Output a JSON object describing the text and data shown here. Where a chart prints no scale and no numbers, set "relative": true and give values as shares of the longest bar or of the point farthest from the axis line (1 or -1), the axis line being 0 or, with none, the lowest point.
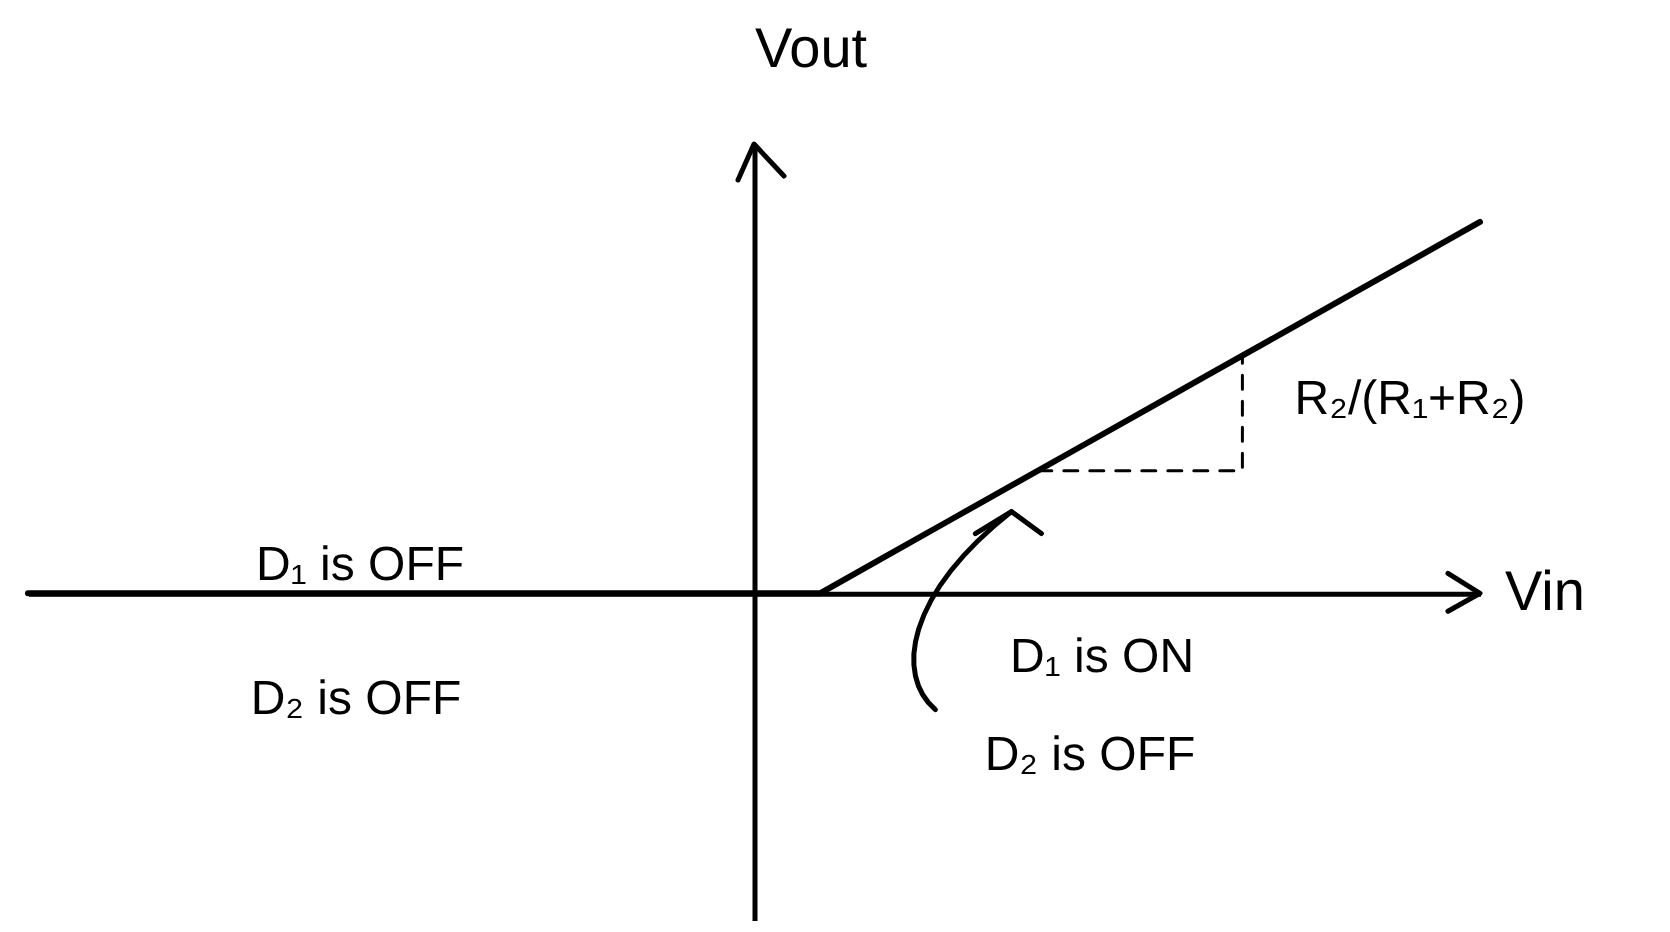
{
  "chart_data": {
    "type": "line",
    "xlabel": "Vin",
    "ylabel": "Vout",
    "categories": [
      null,
      null,
      null,
      null,
      null,
      null,
      null,
      null,
      null,
      null,
      null,
      null,
      null,
      null,
      null,
      null,
      null,
      null,
      null,
      null,
      null,
      null,
      null
    ],
    "series": [
      {
        "color": "#000000",
        "values": [
          0,
          0,
          0,
          0,
          0,
          0,
          0,
          0,
          0,
          0,
          0,
          0,
          0,
          0.1,
          0.2,
          0.3,
          0.4,
          0.5,
          0.6,
          0.7,
          0.8,
          0.9,
          1
        ]
      }
    ],
    "relative": true,
    "legend": false,
    "annotations": [
      "D₁ is OFF",
      "D₂ is OFF",
      "D₁ is ON",
      "D₂ is OFF",
      "R₂/(R₁+R₂)"
    ]
  }
}
